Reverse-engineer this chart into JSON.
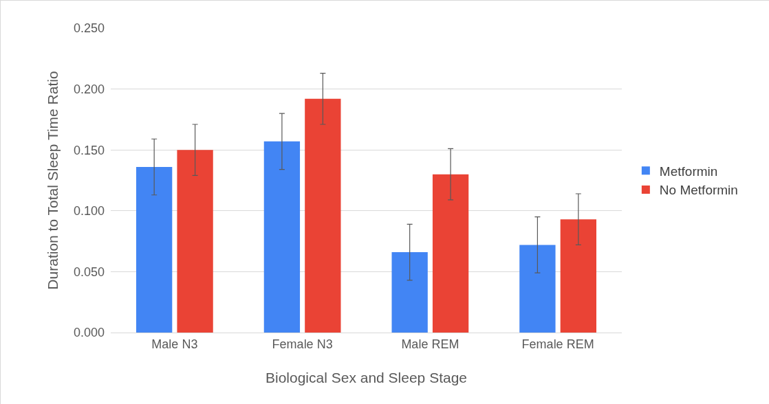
{
  "chart_data": {
    "type": "bar",
    "xlabel": "Biological Sex and Sleep Stage",
    "ylabel": "Duration to Total Sleep Time Ratio",
    "categories": [
      "Male N3",
      "Female N3",
      "Male REM",
      "Female REM"
    ],
    "series": [
      {
        "name": "Metformin",
        "color": "#4285f4",
        "values": [
          0.136,
          0.157,
          0.066,
          0.072
        ],
        "errors": [
          0.023,
          0.023,
          0.023,
          0.023
        ]
      },
      {
        "name": "No Metformin",
        "color": "#ea4335",
        "values": [
          0.15,
          0.192,
          0.13,
          0.093
        ],
        "errors": [
          0.021,
          0.021,
          0.021,
          0.021
        ]
      }
    ],
    "ylim": [
      0,
      0.25
    ],
    "yticks": [
      {
        "value": 0,
        "label": "0.000"
      },
      {
        "value": 0.05,
        "label": "0.050"
      },
      {
        "value": 0.1,
        "label": "0.100"
      },
      {
        "value": 0.15,
        "label": "0.150"
      },
      {
        "value": 0.2,
        "label": "0.200"
      },
      {
        "value": 0.25,
        "label": "0.250"
      }
    ],
    "grid": "y",
    "legend": "right"
  }
}
